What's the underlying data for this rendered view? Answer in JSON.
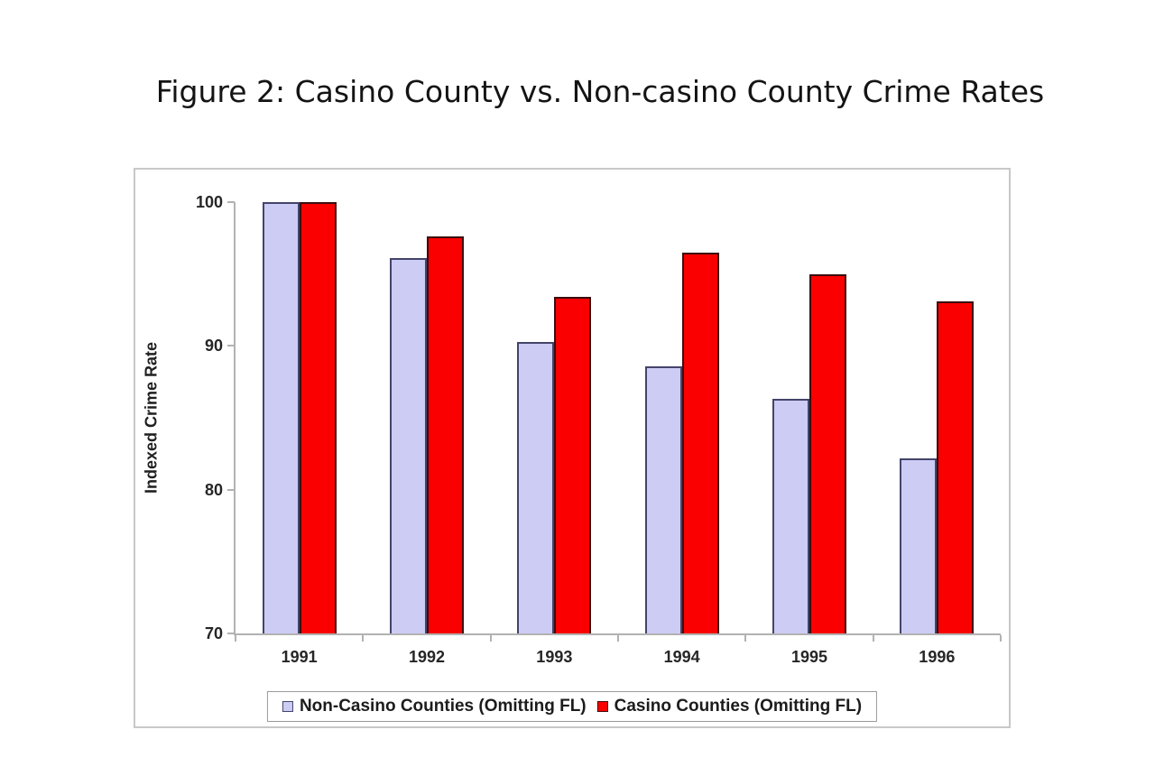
{
  "chart_data": {
    "type": "bar",
    "title": "Figure 2: Casino County vs. Non-casino County Crime Rates",
    "categories": [
      "1991",
      "1992",
      "1993",
      "1994",
      "1995",
      "1996"
    ],
    "series": [
      {
        "name": "Non-Casino Counties (Omitting FL)",
        "color": "#ccccf5",
        "border_color": "#44446a",
        "values": [
          100,
          96.1,
          90.3,
          88.6,
          86.3,
          82.2
        ]
      },
      {
        "name": "Casino Counties (Omitting FL)",
        "color": "#fa0000",
        "border_color": "#3d0d0d",
        "values": [
          100,
          97.6,
          93.4,
          96.5,
          95.0,
          93.1
        ]
      }
    ],
    "xlabel": "",
    "ylabel": "Indexed Crime Rate",
    "ylim": [
      70,
      100
    ],
    "yticks": [
      100,
      90,
      80,
      70
    ],
    "grid": false,
    "legend_position": "bottom",
    "colors": {
      "axis": "#b2b2b2",
      "chart_border": "#c8c8c8",
      "text": "#262626"
    }
  }
}
